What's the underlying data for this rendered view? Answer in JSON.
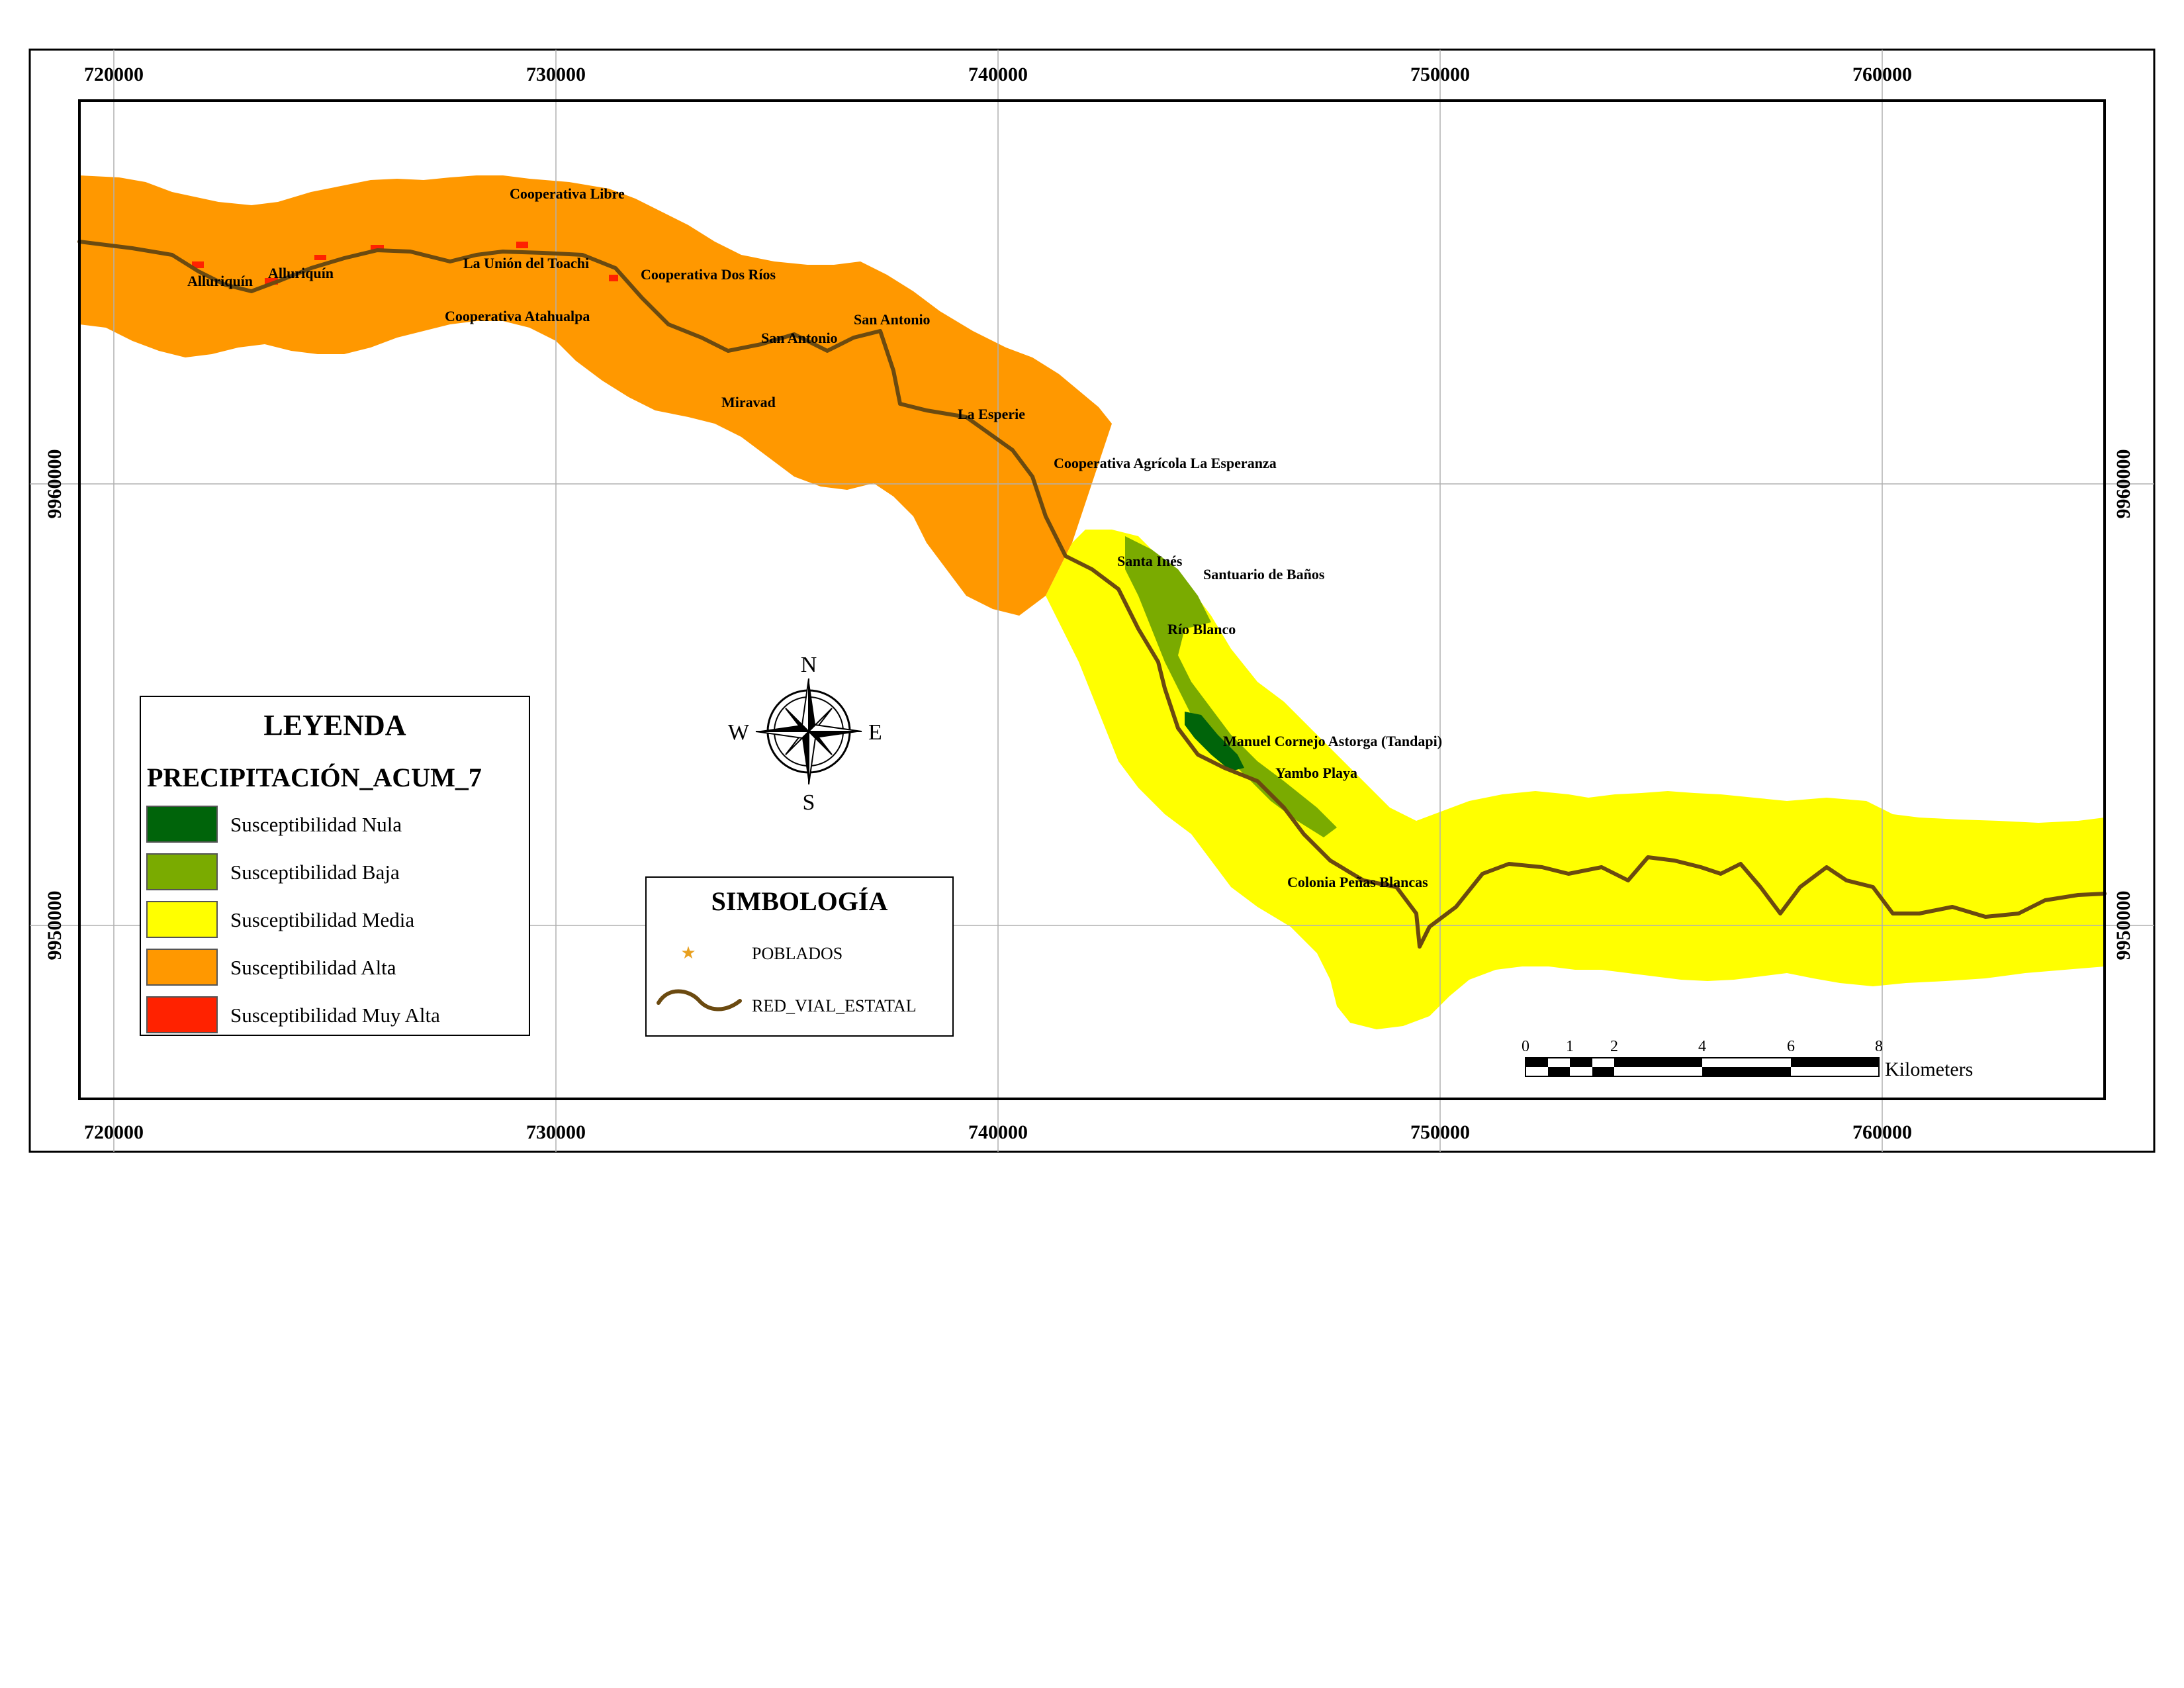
{
  "map": {
    "x_ticks": [
      "720000",
      "730000",
      "740000",
      "750000",
      "760000"
    ],
    "y_ticks": [
      "9960000",
      "9950000"
    ],
    "colors": {
      "nula": "#00640a",
      "baja": "#7aab00",
      "media": "#ffff00",
      "alta": "#ff9800",
      "muy_alta": "#ff2200",
      "road": "#6b4a10",
      "grid": "#b0b0b0",
      "poblado": "#e8a020"
    },
    "places": [
      {
        "name": "Cooperativa Libre"
      },
      {
        "name": "La Unión del Toachi"
      },
      {
        "name": "Alluriquín"
      },
      {
        "name": "Alluriquín"
      },
      {
        "name": "Cooperativa Dos Ríos"
      },
      {
        "name": "Cooperativa Atahualpa"
      },
      {
        "name": "San Antonio"
      },
      {
        "name": "San Antonio"
      },
      {
        "name": "Miravad"
      },
      {
        "name": "La Esperie"
      },
      {
        "name": "Cooperativa Agrícola La Esperanza"
      },
      {
        "name": "Santa Inés"
      },
      {
        "name": "Santuario de Baños"
      },
      {
        "name": "Río Blanco"
      },
      {
        "name": "Manuel Cornejo Astorga (Tandapi)"
      },
      {
        "name": "Yambo Playa"
      },
      {
        "name": "Colonia Peñas Blancas"
      }
    ]
  },
  "legend": {
    "title": "LEYENDA",
    "subtitle": "PRECIPITACIÓN_ACUM_7",
    "items": [
      {
        "label": "Susceptibilidad Nula",
        "color": "#00640a"
      },
      {
        "label": "Susceptibilidad Baja",
        "color": "#7aab00"
      },
      {
        "label": "Susceptibilidad Media",
        "color": "#ffff00"
      },
      {
        "label": "Susceptibilidad Alta",
        "color": "#ff9800"
      },
      {
        "label": "Susceptibilidad Muy Alta",
        "color": "#ff2200"
      }
    ]
  },
  "symbology": {
    "title": "SIMBOLOGÍA",
    "poblados": "POBLADOS",
    "red_vial": "RED_VIAL_ESTATAL"
  },
  "compass": {
    "n": "N",
    "s": "S",
    "e": "E",
    "w": "W"
  },
  "scale": {
    "ticks": [
      "0",
      "1",
      "2",
      "4",
      "6",
      "8"
    ],
    "unit": "Kilometers"
  }
}
